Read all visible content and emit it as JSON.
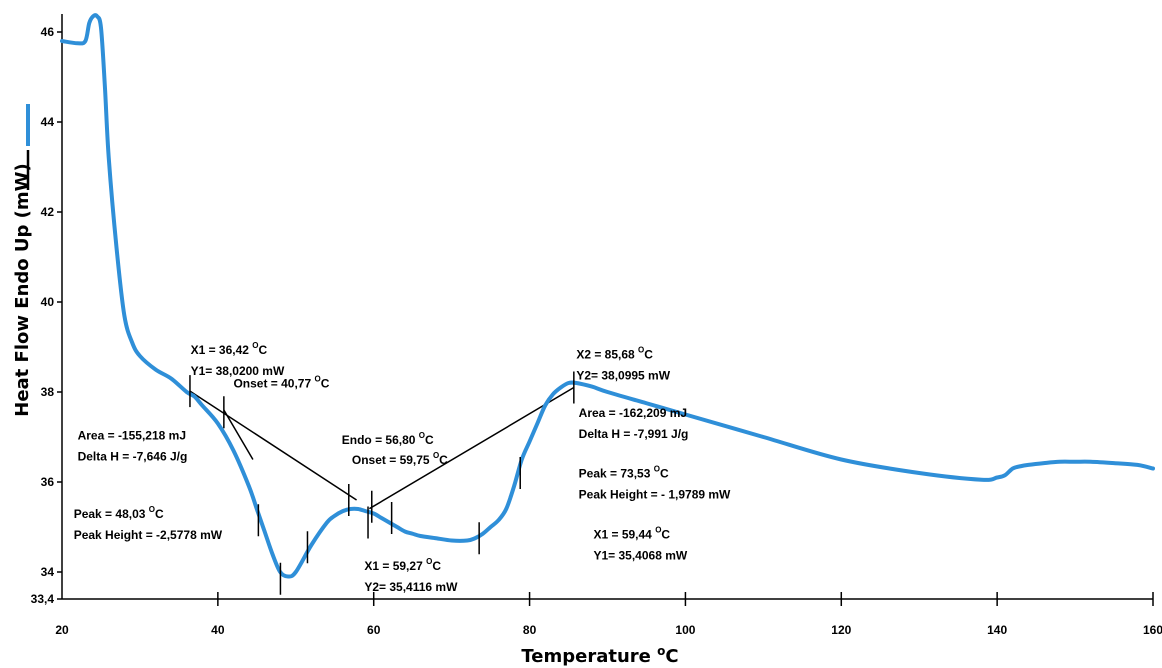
{
  "chart_data": {
    "type": "line",
    "title": "",
    "xlabel": "Temperature °C",
    "ylabel": "Heat Flow Endo Up (mW)",
    "xlim": [
      20,
      160
    ],
    "ylim": [
      33.4,
      46.4
    ],
    "x_ticks": [
      "20",
      "40",
      "60",
      "80",
      "100",
      "120",
      "140",
      "160"
    ],
    "y_ticks": [
      "33,4",
      "34",
      "36",
      "38",
      "40",
      "42",
      "44",
      "46"
    ],
    "colors": {
      "series": "#2f8fd8",
      "baseline": "#000000"
    },
    "series": [
      {
        "x": [
          20,
          22,
          23,
          23.5,
          24,
          24.5,
          25,
          25.5,
          26,
          27,
          28,
          29,
          30,
          32,
          34,
          36,
          37,
          38,
          40,
          42,
          44,
          45,
          46,
          47,
          48,
          49,
          50,
          52,
          54,
          55,
          56,
          57,
          58,
          59,
          60,
          61,
          62,
          63,
          64,
          65,
          66,
          68,
          70,
          72,
          73,
          74,
          75,
          76,
          77,
          78,
          79,
          80,
          81,
          82,
          83,
          84,
          85,
          86,
          88,
          90,
          95,
          100,
          110,
          120,
          130,
          138,
          140,
          141,
          142,
          143,
          144,
          146,
          148,
          150,
          152,
          155,
          158,
          160
        ],
        "y": [
          45.8,
          45.75,
          45.8,
          46.2,
          46.35,
          46.35,
          46.1,
          44.8,
          43.2,
          41.2,
          39.7,
          39.1,
          38.8,
          38.5,
          38.3,
          38.0,
          37.9,
          37.7,
          37.3,
          36.7,
          35.9,
          35.4,
          34.9,
          34.4,
          34.0,
          33.9,
          34.0,
          34.6,
          35.1,
          35.25,
          35.35,
          35.4,
          35.4,
          35.35,
          35.3,
          35.2,
          35.1,
          35.0,
          34.9,
          34.85,
          34.8,
          34.75,
          34.7,
          34.7,
          34.75,
          34.85,
          35.0,
          35.15,
          35.4,
          35.9,
          36.5,
          36.9,
          37.3,
          37.7,
          37.95,
          38.1,
          38.2,
          38.2,
          38.12,
          38.0,
          37.75,
          37.5,
          37.0,
          36.5,
          36.2,
          36.05,
          36.1,
          36.15,
          36.3,
          36.35,
          36.38,
          36.42,
          36.45,
          36.45,
          36.45,
          36.42,
          36.38,
          36.3
        ]
      }
    ],
    "baselines": [
      {
        "x": [
          36.42,
          57.8
        ],
        "y": [
          38.02,
          35.6
        ]
      },
      {
        "x": [
          40.77,
          44.5
        ],
        "y": [
          37.6,
          36.5
        ]
      },
      {
        "x": [
          59.44,
          85.68
        ],
        "y": [
          35.4068,
          38.0995
        ]
      }
    ],
    "markers": [
      {
        "x": 36.42,
        "y": 38.02
      },
      {
        "x": 40.77,
        "y": 37.55
      },
      {
        "x": 45.2,
        "y": 35.15
      },
      {
        "x": 48.03,
        "y": 33.85
      },
      {
        "x": 51.5,
        "y": 34.55
      },
      {
        "x": 56.8,
        "y": 35.6
      },
      {
        "x": 59.27,
        "y": 35.1
      },
      {
        "x": 59.75,
        "y": 35.45
      },
      {
        "x": 62.3,
        "y": 35.2
      },
      {
        "x": 73.53,
        "y": 34.75
      },
      {
        "x": 78.8,
        "y": 36.2
      },
      {
        "x": 85.68,
        "y": 38.1
      }
    ],
    "annotations": [
      {
        "x": 36.5,
        "y": 38.85,
        "lines": [
          "X1 = 36,42 ",
          "Y1= 38,0200 mW"
        ],
        "sup": "O",
        "after": "C"
      },
      {
        "x": 42.0,
        "y": 38.1,
        "lines": [
          "Onset = 40,77 "
        ],
        "sup": "O",
        "after": "C"
      },
      {
        "x": 22.0,
        "y": 36.95,
        "lines": [
          "Area = -155,218 mJ",
          "Delta H = -7,646 J/g"
        ]
      },
      {
        "x": 21.5,
        "y": 35.2,
        "lines": [
          "Peak = 48,03 ",
          "Peak Height = -2,5778 mW"
        ],
        "sup": "O",
        "after": "C"
      },
      {
        "x": 55.9,
        "y": 36.85,
        "lines": [
          "Endo = 56,80 "
        ],
        "sup": "O",
        "after": "C"
      },
      {
        "x": 57.2,
        "y": 36.4,
        "lines": [
          "Onset = 59,75 "
        ],
        "sup": "O",
        "after": "C"
      },
      {
        "x": 58.8,
        "y": 34.05,
        "lines": [
          "X1 = 59,27 ",
          "Y2= 35,4116 mW"
        ],
        "sup": "O",
        "after": "C"
      },
      {
        "x": 86.0,
        "y": 38.75,
        "lines": [
          "X2 = 85,68 ",
          "Y2= 38,0995 mW"
        ],
        "sup": "O",
        "after": "C"
      },
      {
        "x": 86.3,
        "y": 37.45,
        "lines": [
          "Area = -162,209 mJ",
          "Delta H = -7,991 J/g"
        ]
      },
      {
        "x": 86.3,
        "y": 36.1,
        "lines": [
          "Peak = 73,53 ",
          "Peak Height = - 1,9789 mW"
        ],
        "sup": "O",
        "after": "C"
      },
      {
        "x": 88.2,
        "y": 34.75,
        "lines": [
          "X1 = 59,44 ",
          "Y1= 35,4068 mW"
        ],
        "sup": "O",
        "after": "C"
      }
    ],
    "xlabel_sup": "o",
    "xlabel_after": "C"
  }
}
